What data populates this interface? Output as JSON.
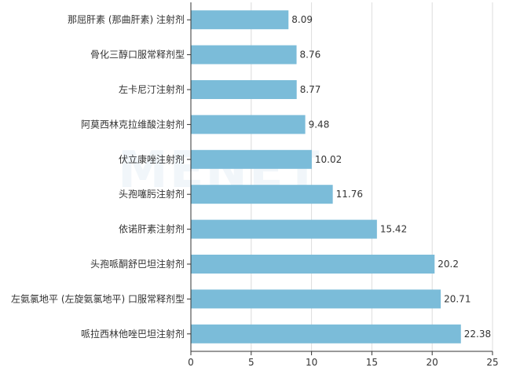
{
  "watermark": "MENET",
  "chart_data": {
    "type": "bar",
    "orientation": "horizontal",
    "categories": [
      "那屈肝素 (那曲肝素) 注射剂",
      "骨化三醇口服常释剂型",
      "左卡尼汀注射剂",
      "阿莫西林克拉维酸注射剂",
      "伏立康唑注射剂",
      "头孢噻肟注射剂",
      "依诺肝素注射剂",
      "头孢哌酮舒巴坦注射剂",
      "左氨氯地平 (左旋氨氯地平) 口服常释剂型",
      "哌拉西林他唑巴坦注射剂"
    ],
    "values": [
      8.09,
      8.76,
      8.77,
      9.48,
      10.02,
      11.76,
      15.42,
      20.2,
      20.71,
      22.38
    ],
    "value_labels": [
      "8.09",
      "8.76",
      "8.77",
      "9.48",
      "10.02",
      "11.76",
      "15.42",
      "20.2",
      "20.71",
      "22.38"
    ],
    "xlim": [
      0,
      25
    ],
    "xticks": [
      "0",
      "5",
      "10",
      "15",
      "20",
      "25"
    ],
    "grid": true,
    "bar_color": "#7bbcd9"
  }
}
